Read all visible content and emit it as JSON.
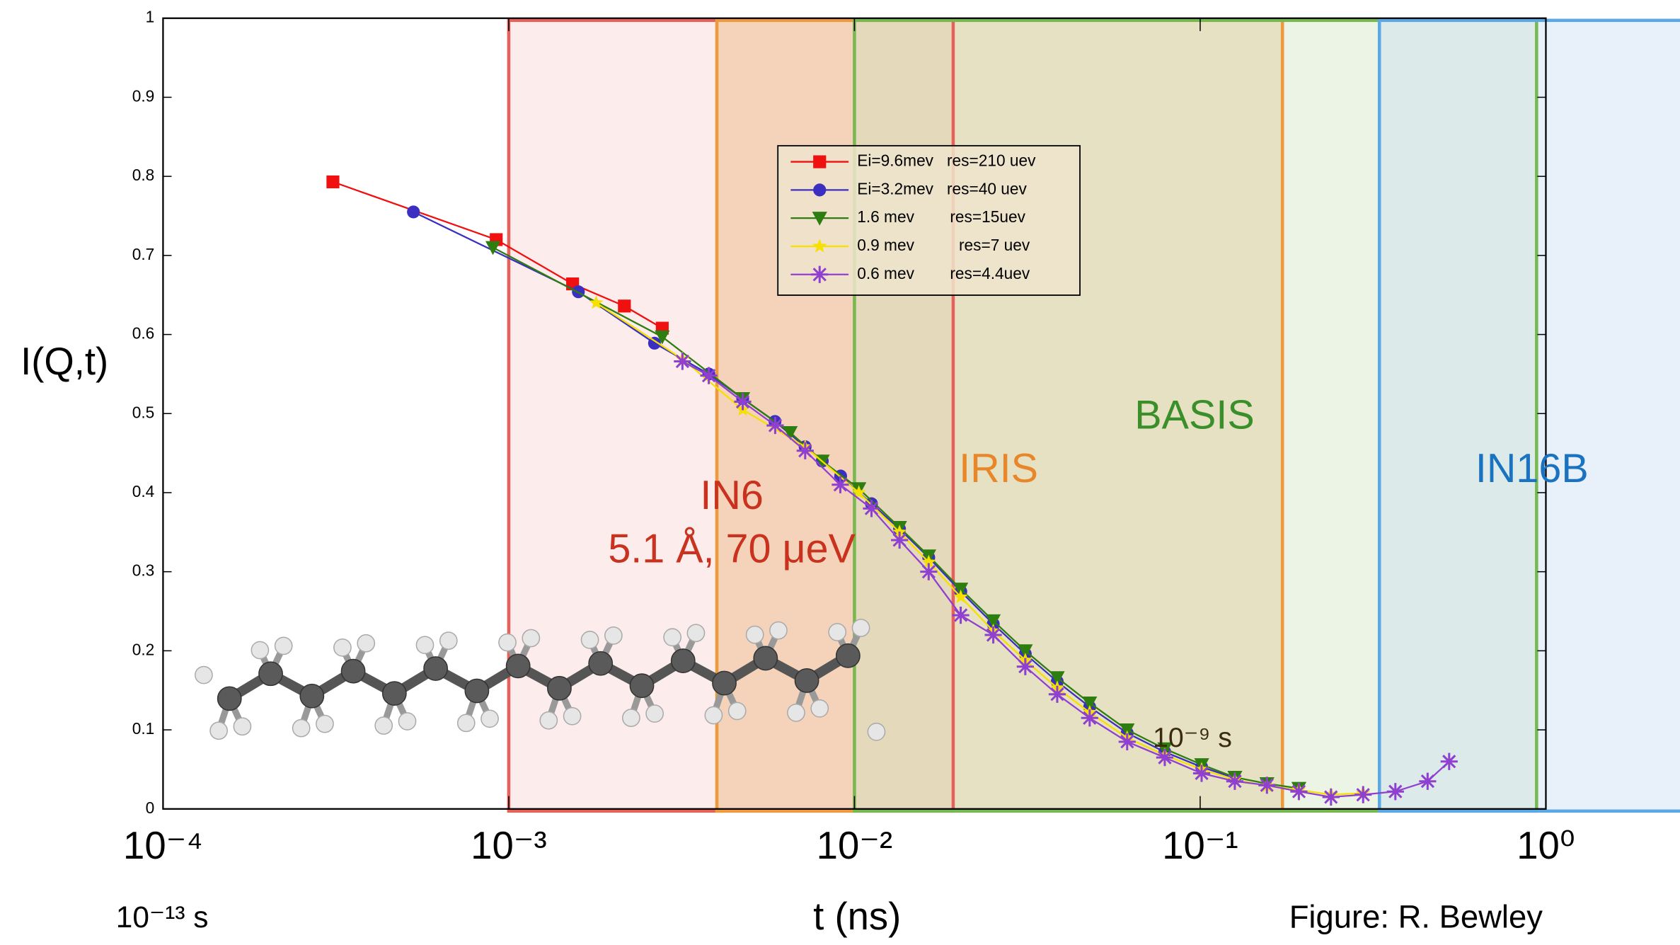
{
  "chart_data": {
    "type": "line",
    "xlog": true,
    "xlim": [
      0.0001,
      1
    ],
    "ylim": [
      0,
      1
    ],
    "xticks": [
      {
        "value": 0.0001,
        "label": "10⁻⁴"
      },
      {
        "value": 0.001,
        "label": "10⁻³"
      },
      {
        "value": 0.01,
        "label": "10⁻²"
      },
      {
        "value": 0.1,
        "label": "10⁻¹"
      },
      {
        "value": 1,
        "label": "10⁰"
      }
    ],
    "yticks": [
      0,
      0.1,
      0.2,
      0.3,
      0.4,
      0.5,
      0.6,
      0.7,
      0.8,
      0.9,
      1
    ],
    "x_label": "t (ns)",
    "y_label": "I(Q,t)",
    "credit": "Figure: R. Bewley",
    "annotations": [
      "10⁻¹³ s",
      "10⁻⁹ s"
    ],
    "regions": [
      {
        "label": "IN6",
        "sublabel": "5.1 Å, 70 μeV",
        "color": "#e8605a",
        "text_color": "#c8321e",
        "fill": "#f7d0ce",
        "range": [
          0.001,
          0.0193
        ]
      },
      {
        "label": "IRIS",
        "color": "#ec9a3c",
        "text_color": "#e8862a",
        "fill": "#e8b070",
        "range": [
          0.004,
          0.173
        ]
      },
      {
        "label": "BASIS",
        "color": "#78b850",
        "text_color": "#3a8f2a",
        "fill": "#cfe3bf",
        "range": [
          0.01,
          0.94
        ]
      },
      {
        "label": "IN16B",
        "color": "#5aa8e6",
        "text_color": "#1a73c0",
        "fill": "#c6dcf0",
        "range": [
          0.33,
          2.6
        ]
      }
    ],
    "series": [
      {
        "name": "Ei=9.6mev   res=210 uev",
        "color": "#f01010",
        "marker": "square",
        "x": [
          0.00031,
          0.00092,
          0.00153,
          0.00216,
          0.00278
        ],
        "values": [
          0.793,
          0.72,
          0.664,
          0.636,
          0.608
        ]
      },
      {
        "name": "Ei=3.2mev   res=40 uev",
        "color": "#3a2fc0",
        "marker": "circle",
        "x": [
          0.00053,
          0.00159,
          0.00264,
          0.00379,
          0.00475,
          0.00589,
          0.0072,
          0.00807,
          0.00912,
          0.0112,
          0.0135,
          0.0164,
          0.0203,
          0.0252,
          0.0312,
          0.0386,
          0.0479,
          0.0615,
          0.079,
          0.101,
          0.126
        ],
        "values": [
          0.755,
          0.654,
          0.589,
          0.55,
          0.519,
          0.49,
          0.458,
          0.44,
          0.421,
          0.386,
          0.354,
          0.318,
          0.275,
          0.234,
          0.196,
          0.161,
          0.129,
          0.096,
          0.072,
          0.053,
          0.039
        ]
      },
      {
        "name": "1.6 mev        res=15uev",
        "color": "#2e7d10",
        "marker": "triangle",
        "x": [
          0.0009,
          0.00278,
          0.00475,
          0.00652,
          0.00807,
          0.0103,
          0.0135,
          0.0164,
          0.0203,
          0.0252,
          0.0312,
          0.0386,
          0.0479,
          0.0615,
          0.079,
          0.101,
          0.126,
          0.156,
          0.193
        ],
        "values": [
          0.71,
          0.597,
          0.519,
          0.476,
          0.44,
          0.405,
          0.356,
          0.32,
          0.278,
          0.238,
          0.2,
          0.166,
          0.134,
          0.1,
          0.076,
          0.056,
          0.04,
          0.032,
          0.026
        ]
      },
      {
        "name": "0.9 mev          res=7 uev",
        "color": "#f5e000",
        "marker": "star",
        "x": [
          0.00179,
          0.00318,
          0.00475,
          0.0072,
          0.0103,
          0.0135,
          0.0164,
          0.0203,
          0.0252,
          0.0312,
          0.0386,
          0.0479,
          0.0615,
          0.079,
          0.101,
          0.126,
          0.156,
          0.193,
          0.239,
          0.296
        ],
        "values": [
          0.64,
          0.569,
          0.505,
          0.458,
          0.4,
          0.35,
          0.312,
          0.268,
          0.225,
          0.188,
          0.153,
          0.122,
          0.09,
          0.068,
          0.05,
          0.037,
          0.029,
          0.024,
          0.018,
          0.02
        ]
      },
      {
        "name": "0.6 mev        res=4.4uev",
        "color": "#9040d0",
        "marker": "asterisk",
        "x": [
          0.00318,
          0.00379,
          0.00475,
          0.0059,
          0.0072,
          0.0091,
          0.0112,
          0.0135,
          0.0164,
          0.0203,
          0.0252,
          0.0312,
          0.0386,
          0.0479,
          0.0615,
          0.079,
          0.101,
          0.126,
          0.156,
          0.193,
          0.239,
          0.296,
          0.367,
          0.455,
          0.525
        ],
        "values": [
          0.566,
          0.548,
          0.515,
          0.485,
          0.453,
          0.41,
          0.38,
          0.34,
          0.3,
          0.245,
          0.22,
          0.18,
          0.145,
          0.115,
          0.085,
          0.065,
          0.045,
          0.035,
          0.03,
          0.022,
          0.015,
          0.018,
          0.022,
          0.035,
          0.06
        ]
      }
    ]
  }
}
